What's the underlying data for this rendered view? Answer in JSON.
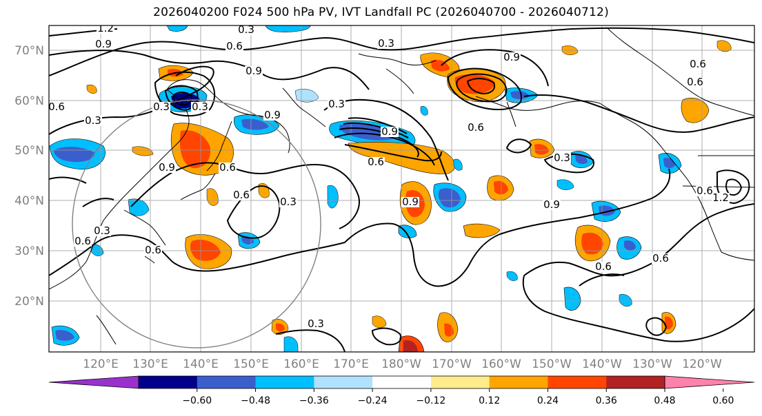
{
  "title": "2026040200 F024 500 hPa PV, IVT Landfall PC (2026040700 - 2026040712)",
  "map": {
    "lat_labels": [
      "70°N",
      "60°N",
      "50°N",
      "40°N",
      "30°N",
      "20°N"
    ],
    "lon_labels": [
      "120°E",
      "130°E",
      "140°E",
      "150°E",
      "160°E",
      "170°E",
      "180°W",
      "170°W",
      "160°W",
      "150°W",
      "140°W",
      "130°W",
      "120°W"
    ],
    "contour_labels": [
      "1.2",
      "0.3",
      "0.9",
      "0.6",
      "0.3",
      "0.9",
      "0.3",
      "0.9",
      "0.9",
      "0.6",
      "0.6",
      "0.6",
      "0.6",
      "0.3",
      "0.3",
      "0.3",
      "0.9",
      "0.6",
      "0.3",
      "0.9",
      "0.6",
      "0.9",
      "0.6",
      "0.6",
      "0.3",
      "0.6",
      "0.3",
      "0.6",
      "0.6",
      "0.3",
      "0.9",
      "0.6",
      "1.2"
    ]
  },
  "colorbar": {
    "tick_labels": [
      "−0.60",
      "−0.48",
      "−0.36",
      "−0.24",
      "−0.12",
      "0.12",
      "0.24",
      "0.36",
      "0.48",
      "0.60"
    ],
    "colors": [
      "#9932cc",
      "#00008b",
      "#3a5fcd",
      "#00bfff",
      "#b0e2ff",
      "#ffffff",
      "#ffec8b",
      "#ffa500",
      "#ff4500",
      "#b22222",
      "#ff82ab"
    ]
  },
  "colors": {
    "neg_strong": "#00008b",
    "neg_mid": "#3a5fcd",
    "neg_weak": "#00bfff",
    "neg_light": "#b0e2ff",
    "pos_light": "#ffec8b",
    "pos_mid": "#ffa500",
    "pos_strong": "#ff4500",
    "pos_dark": "#b22222",
    "grid": "#999999",
    "circle": "#808080"
  }
}
